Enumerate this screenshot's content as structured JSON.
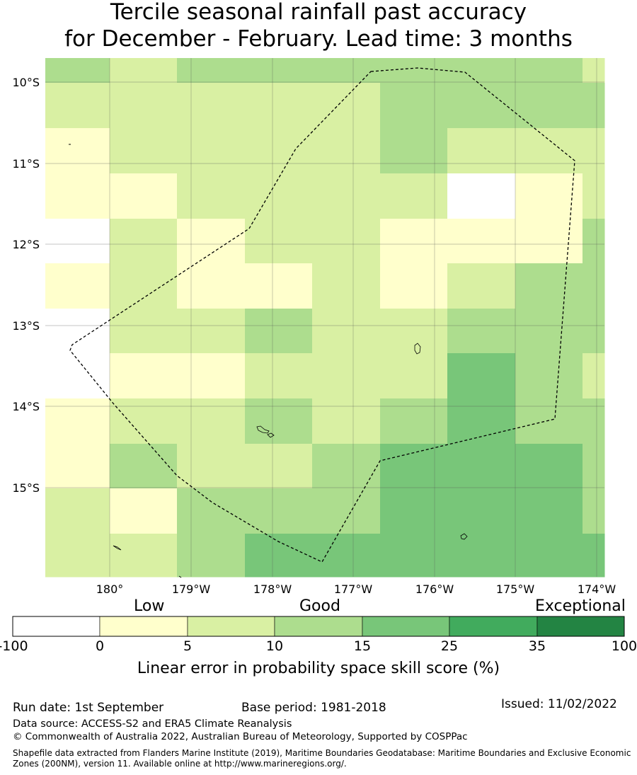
{
  "title": {
    "line1": "Tercile seasonal rainfall past accuracy",
    "line2": "for December - February. Lead time: 3 months"
  },
  "map": {
    "lat_labels": [
      "10°S",
      "11°S",
      "12°S",
      "13°S",
      "14°S",
      "15°S"
    ],
    "lon_labels": [
      "180°",
      "179°W",
      "178°W",
      "177°W",
      "176°W",
      "175°W",
      "174°W"
    ],
    "boundary_style": "dashed EEZ boundary (Tokelau)",
    "grid": [
      [
        3,
        2,
        3,
        3,
        3,
        3,
        3,
        3,
        2
      ],
      [
        2,
        2,
        2,
        2,
        2,
        3,
        3,
        3,
        3
      ],
      [
        1,
        2,
        2,
        2,
        2,
        3,
        2,
        2,
        2
      ],
      [
        1,
        1,
        2,
        2,
        2,
        2,
        0,
        1,
        2
      ],
      [
        0,
        2,
        1,
        2,
        2,
        1,
        1,
        1,
        3
      ],
      [
        1,
        2,
        1,
        1,
        2,
        1,
        2,
        3,
        3
      ],
      [
        0,
        2,
        2,
        3,
        2,
        2,
        3,
        3,
        3
      ],
      [
        0,
        1,
        1,
        2,
        2,
        2,
        4,
        3,
        2
      ],
      [
        1,
        2,
        2,
        3,
        2,
        3,
        4,
        3,
        3
      ],
      [
        1,
        3,
        2,
        2,
        3,
        4,
        4,
        4,
        3
      ],
      [
        2,
        1,
        3,
        3,
        3,
        4,
        4,
        4,
        3
      ],
      [
        2,
        2,
        3,
        4,
        4,
        4,
        4,
        4,
        4
      ]
    ]
  },
  "colorbar": {
    "labels": [
      "Low",
      "Good",
      "Exceptional"
    ],
    "ticks": [
      "-100",
      "0",
      "5",
      "10",
      "15",
      "25",
      "35",
      "100"
    ],
    "colors": [
      "#ffffff",
      "#ffffcc",
      "#d9f0a3",
      "#addd8e",
      "#78c679",
      "#41ab5d",
      "#238443"
    ],
    "title": "Linear error in probability space skill score (%)"
  },
  "footer": {
    "run_date": "Run date: 1st September",
    "base_period": "Base period: 1981-2018",
    "issued": "Issued: 11/02/2022",
    "data_source": "Data source: ACCESS-S2 and ERA5 Climate Reanalysis",
    "copyright": "© Commonwealth of Australia 2022, Australian Bureau of Meteorology, Supported by COSPPac",
    "shapefile_line1": "Shapefile data extracted from Flanders Marine Institute (2019), Maritime Boundaries Geodatabase: Maritime Boundaries and Exclusive Economic",
    "shapefile_line2": "Zones (200NM), version 11. Available online at http://www.marineregions.org/."
  }
}
